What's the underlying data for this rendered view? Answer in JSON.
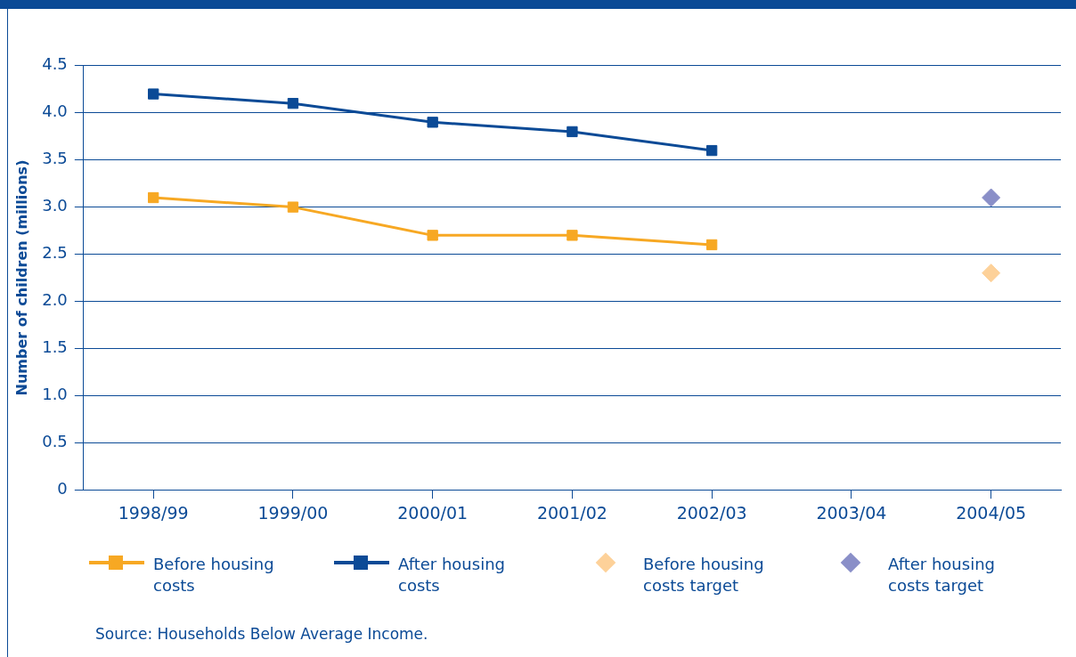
{
  "chart_data": {
    "type": "line",
    "ylabel": "Number of children (millions)",
    "categories": [
      "1998/99",
      "1999/00",
      "2000/01",
      "2001/02",
      "2002/03",
      "2003/04",
      "2004/05"
    ],
    "ylim": [
      0,
      4.5
    ],
    "yticks": [
      0,
      0.5,
      {
        "value": 1,
        "label": "1.0"
      },
      1.5,
      {
        "value": 2,
        "label": "2.0"
      },
      2.5,
      {
        "value": 3,
        "label": "3.0"
      },
      3.5,
      {
        "value": 4,
        "label": "4.0"
      },
      4.5
    ],
    "grid": "y",
    "legend": "bottom",
    "marker": "square",
    "line_style": "solid",
    "series": [
      {
        "name": "Before housing costs",
        "color": "#f7a823",
        "values": [
          3.1,
          3.0,
          2.7,
          2.7,
          2.6,
          null,
          null
        ]
      },
      {
        "name": "After housing costs",
        "color": "#0b4a96",
        "values": [
          4.2,
          4.1,
          3.9,
          3.8,
          3.6,
          null,
          null
        ]
      },
      {
        "name": "Before housing costs target",
        "type": "scatter",
        "marker": "diamond",
        "color": "#fdd199",
        "values": [
          null,
          null,
          null,
          null,
          null,
          null,
          2.3
        ]
      },
      {
        "name": "After housing costs target",
        "type": "scatter",
        "marker": "diamond",
        "color": "#8a8fc8",
        "values": [
          null,
          null,
          null,
          null,
          null,
          null,
          3.1
        ]
      }
    ],
    "annotations": [
      "Source: Households Below Average Income."
    ]
  }
}
